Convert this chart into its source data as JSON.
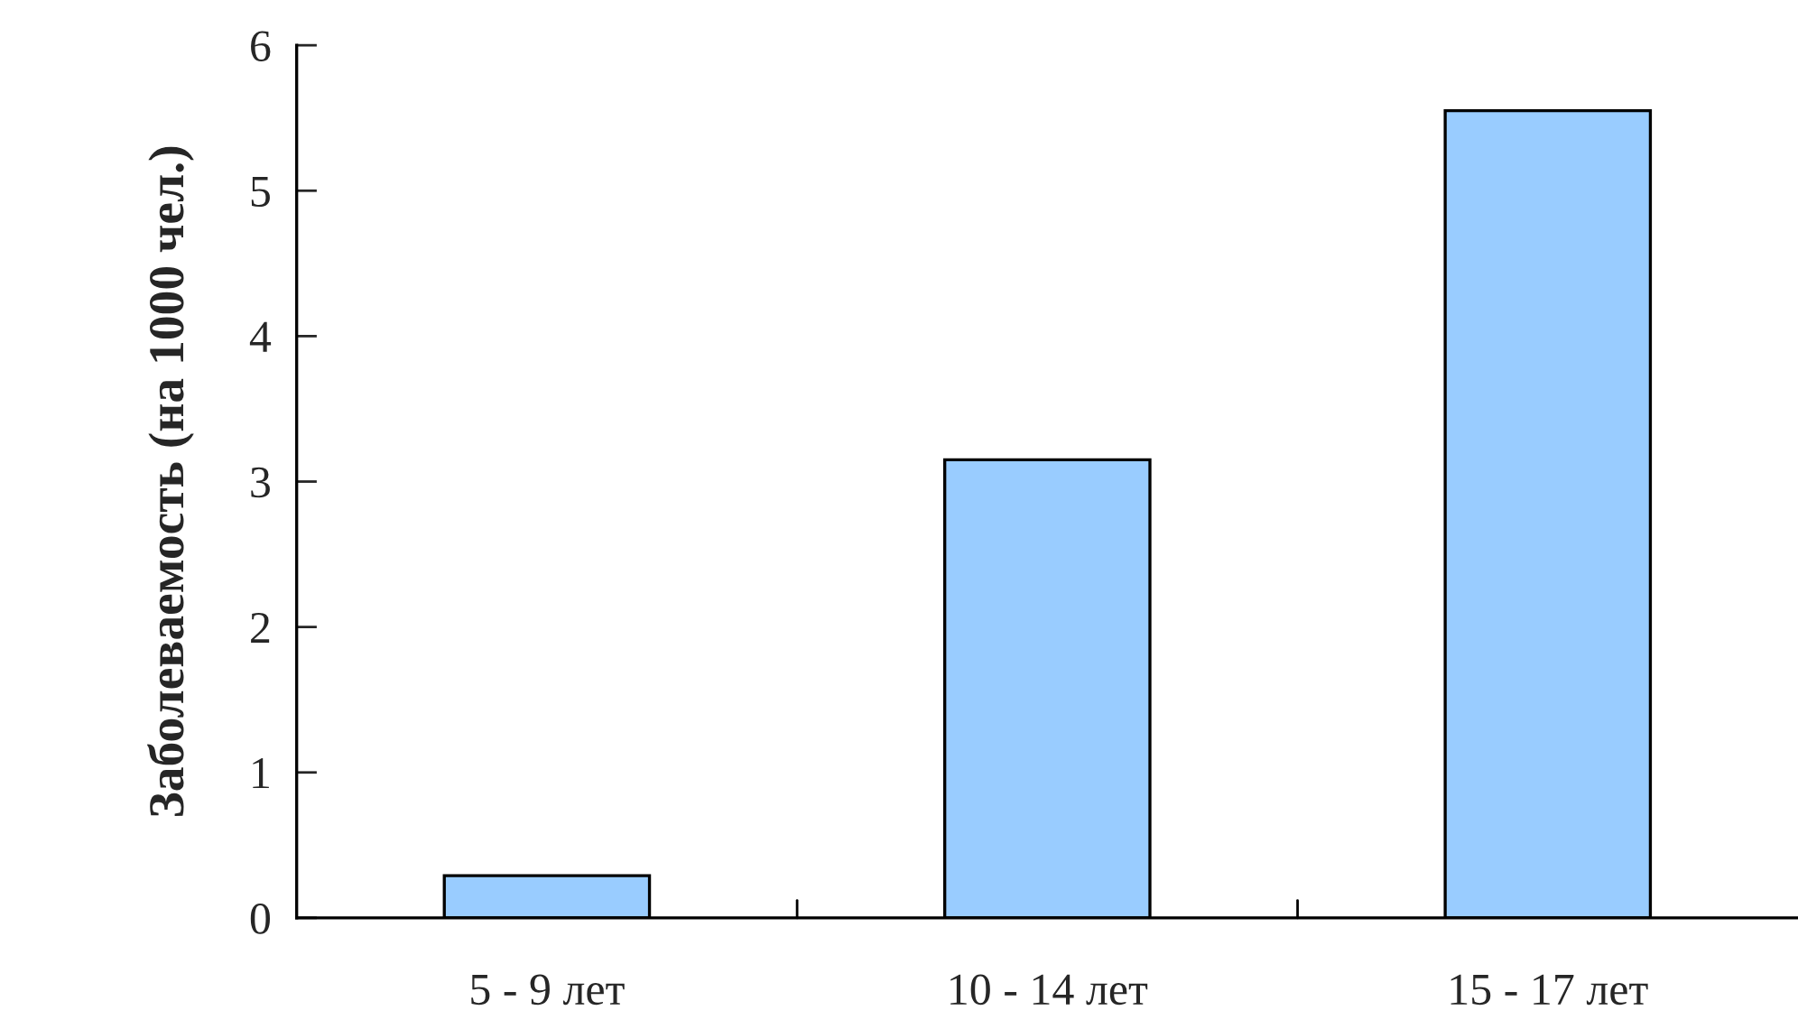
{
  "chart_data": {
    "type": "bar",
    "ylabel": "Заболеваемость (на 1000 чел.)",
    "categories": [
      "5 - 9 лет",
      "10 - 14 лет",
      "15 - 17 лет"
    ],
    "values": [
      0.29,
      3.15,
      5.55
    ],
    "color": "#99ccff",
    "ylim": [
      0,
      6
    ],
    "yticks": [
      0,
      1,
      2,
      3,
      4,
      5,
      6
    ],
    "grid": false,
    "legend": false
  }
}
